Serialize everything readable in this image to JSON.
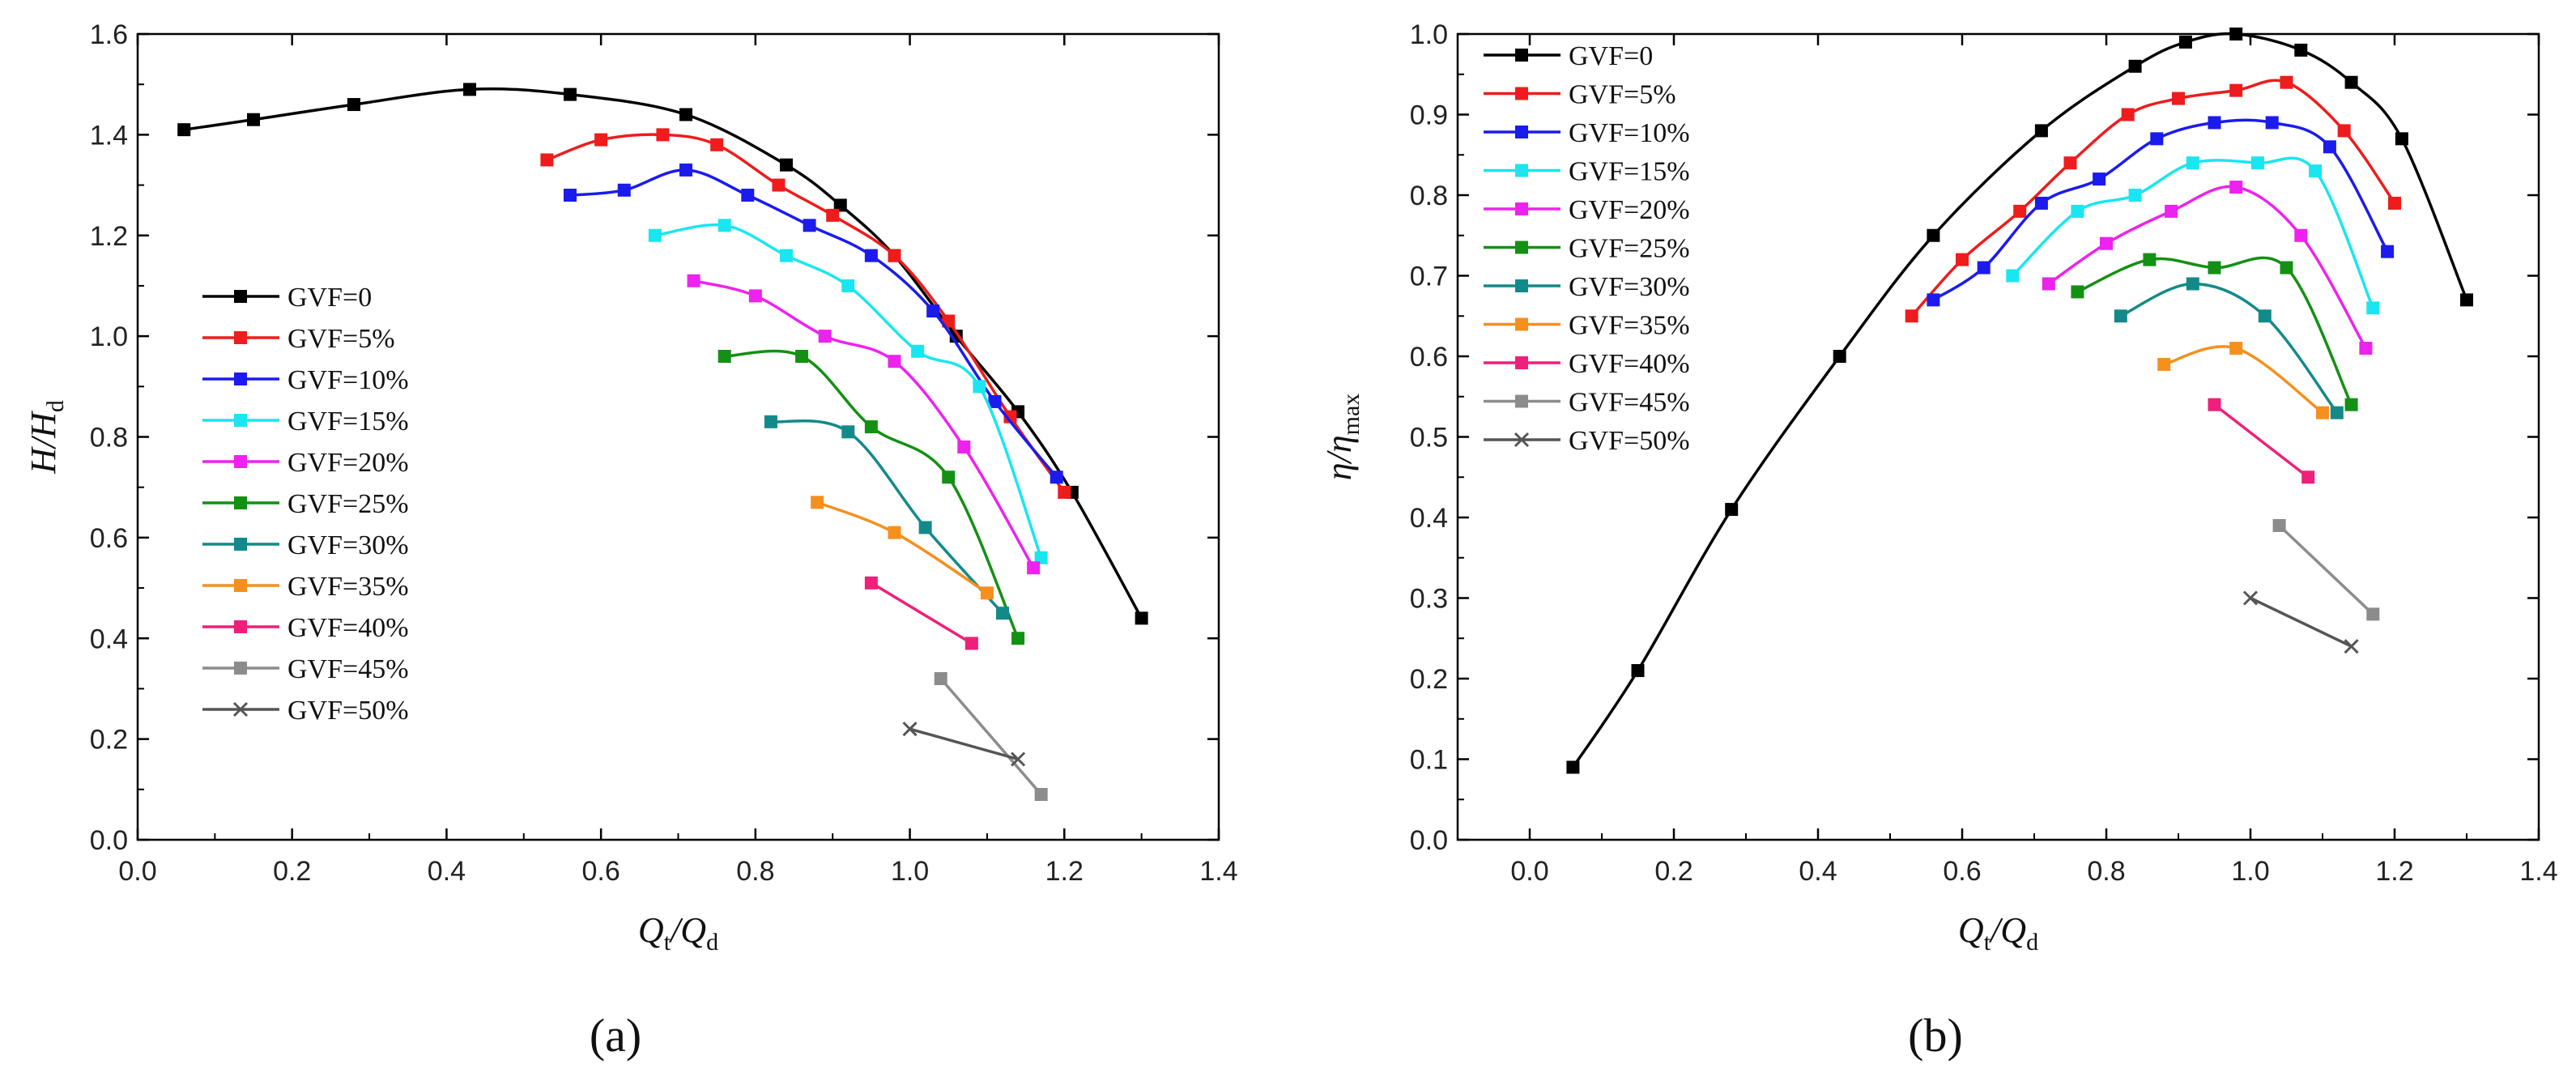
{
  "colors": [
    "#000000",
    "#ee1c1c",
    "#1b1bee",
    "#19e6f0",
    "#ee22ee",
    "#149014",
    "#138a8a",
    "#f5901e",
    "#ee207a",
    "#8c8c8c",
    "#555555"
  ],
  "chart_data": [
    {
      "type": "line",
      "panel_label": "(a)",
      "xlabel": "Q_t/Q_d",
      "ylabel": "H/H_d",
      "xlim": [
        0.0,
        1.4
      ],
      "ylim": [
        0.0,
        1.6
      ],
      "xticks": [
        "0.0",
        "0.2",
        "0.4",
        "0.6",
        "0.8",
        "1.0",
        "1.2",
        "1.4"
      ],
      "yticks": [
        "0.0",
        "0.2",
        "0.4",
        "0.6",
        "0.8",
        "1.0",
        "1.2",
        "1.4",
        "1.6"
      ],
      "legend": "left",
      "series": [
        {
          "name": "GVF=0",
          "marker": "square",
          "x": [
            0.06,
            0.15,
            0.28,
            0.43,
            0.56,
            0.71,
            0.84,
            0.91,
            0.98,
            1.06,
            1.14,
            1.21,
            1.3
          ],
          "y": [
            1.41,
            1.43,
            1.46,
            1.49,
            1.48,
            1.44,
            1.34,
            1.26,
            1.16,
            1.0,
            0.85,
            0.69,
            0.44
          ]
        },
        {
          "name": "GVF=5%",
          "marker": "square",
          "x": [
            0.53,
            0.6,
            0.68,
            0.75,
            0.83,
            0.9,
            0.98,
            1.05,
            1.13,
            1.2
          ],
          "y": [
            1.35,
            1.39,
            1.4,
            1.38,
            1.3,
            1.24,
            1.16,
            1.03,
            0.84,
            0.69
          ]
        },
        {
          "name": "GVF=10%",
          "marker": "square",
          "x": [
            0.56,
            0.63,
            0.71,
            0.79,
            0.87,
            0.95,
            1.03,
            1.11,
            1.19
          ],
          "y": [
            1.28,
            1.29,
            1.33,
            1.28,
            1.22,
            1.16,
            1.05,
            0.87,
            0.72
          ]
        },
        {
          "name": "GVF=15%",
          "marker": "square",
          "x": [
            0.67,
            0.76,
            0.84,
            0.92,
            1.01,
            1.09,
            1.17
          ],
          "y": [
            1.2,
            1.22,
            1.16,
            1.1,
            0.97,
            0.9,
            0.56
          ]
        },
        {
          "name": "GVF=20%",
          "marker": "square",
          "x": [
            0.72,
            0.8,
            0.89,
            0.98,
            1.07,
            1.16
          ],
          "y": [
            1.11,
            1.08,
            1.0,
            0.95,
            0.78,
            0.54
          ]
        },
        {
          "name": "GVF=25%",
          "marker": "square",
          "x": [
            0.76,
            0.86,
            0.95,
            1.05,
            1.14
          ],
          "y": [
            0.96,
            0.96,
            0.82,
            0.72,
            0.4
          ]
        },
        {
          "name": "GVF=30%",
          "marker": "square",
          "x": [
            0.82,
            0.92,
            1.02,
            1.12
          ],
          "y": [
            0.83,
            0.81,
            0.62,
            0.45
          ]
        },
        {
          "name": "GVF=35%",
          "marker": "square",
          "x": [
            0.88,
            0.98,
            1.1
          ],
          "y": [
            0.67,
            0.61,
            0.49
          ]
        },
        {
          "name": "GVF=40%",
          "marker": "square",
          "x": [
            0.95,
            1.08
          ],
          "y": [
            0.51,
            0.39
          ]
        },
        {
          "name": "GVF=45%",
          "marker": "square",
          "x": [
            1.04,
            1.17
          ],
          "y": [
            0.32,
            0.09
          ]
        },
        {
          "name": "GVF=50%",
          "marker": "x",
          "x": [
            1.0,
            1.14
          ],
          "y": [
            0.22,
            0.16
          ]
        }
      ]
    },
    {
      "type": "line",
      "panel_label": "(b)",
      "xlabel": "Q_t/Q_d",
      "ylabel": "η/η_max",
      "xlim": [
        -0.1,
        1.4
      ],
      "ylim": [
        0.0,
        1.0
      ],
      "xticks": [
        "0.0",
        "0.2",
        "0.4",
        "0.6",
        "0.8",
        "1.0",
        "1.2",
        "1.4"
      ],
      "yticks": [
        "0.0",
        "0.1",
        "0.2",
        "0.3",
        "0.4",
        "0.5",
        "0.6",
        "0.7",
        "0.8",
        "0.9",
        "1.0"
      ],
      "legend": "top-left",
      "series": [
        {
          "name": "GVF=0",
          "marker": "square",
          "x": [
            0.06,
            0.15,
            0.28,
            0.43,
            0.56,
            0.71,
            0.84,
            0.91,
            0.98,
            1.07,
            1.14,
            1.21,
            1.3
          ],
          "y": [
            0.09,
            0.21,
            0.41,
            0.6,
            0.75,
            0.88,
            0.96,
            0.99,
            1.0,
            0.98,
            0.94,
            0.87,
            0.67
          ]
        },
        {
          "name": "GVF=5%",
          "marker": "square",
          "x": [
            0.53,
            0.6,
            0.68,
            0.75,
            0.83,
            0.9,
            0.98,
            1.05,
            1.13,
            1.2
          ],
          "y": [
            0.65,
            0.72,
            0.78,
            0.84,
            0.9,
            0.92,
            0.93,
            0.94,
            0.88,
            0.79
          ]
        },
        {
          "name": "GVF=10%",
          "marker": "square",
          "x": [
            0.56,
            0.63,
            0.71,
            0.79,
            0.87,
            0.95,
            1.03,
            1.11,
            1.19
          ],
          "y": [
            0.67,
            0.71,
            0.79,
            0.82,
            0.87,
            0.89,
            0.89,
            0.86,
            0.73
          ]
        },
        {
          "name": "GVF=15%",
          "marker": "square",
          "x": [
            0.67,
            0.76,
            0.84,
            0.92,
            1.01,
            1.09,
            1.17
          ],
          "y": [
            0.7,
            0.78,
            0.8,
            0.84,
            0.84,
            0.83,
            0.66
          ]
        },
        {
          "name": "GVF=20%",
          "marker": "square",
          "x": [
            0.72,
            0.8,
            0.89,
            0.98,
            1.07,
            1.16
          ],
          "y": [
            0.69,
            0.74,
            0.78,
            0.81,
            0.75,
            0.61
          ]
        },
        {
          "name": "GVF=25%",
          "marker": "square",
          "x": [
            0.76,
            0.86,
            0.95,
            1.05,
            1.14
          ],
          "y": [
            0.68,
            0.72,
            0.71,
            0.71,
            0.54
          ]
        },
        {
          "name": "GVF=30%",
          "marker": "square",
          "x": [
            0.82,
            0.92,
            1.02,
            1.12
          ],
          "y": [
            0.65,
            0.69,
            0.65,
            0.53
          ]
        },
        {
          "name": "GVF=35%",
          "marker": "square",
          "x": [
            0.88,
            0.98,
            1.1
          ],
          "y": [
            0.59,
            0.61,
            0.53
          ]
        },
        {
          "name": "GVF=40%",
          "marker": "square",
          "x": [
            0.95,
            1.08
          ],
          "y": [
            0.54,
            0.45
          ]
        },
        {
          "name": "GVF=45%",
          "marker": "square",
          "x": [
            1.04,
            1.17
          ],
          "y": [
            0.39,
            0.28
          ]
        },
        {
          "name": "GVF=50%",
          "marker": "x",
          "x": [
            1.0,
            1.14
          ],
          "y": [
            0.3,
            0.24
          ]
        }
      ]
    }
  ]
}
